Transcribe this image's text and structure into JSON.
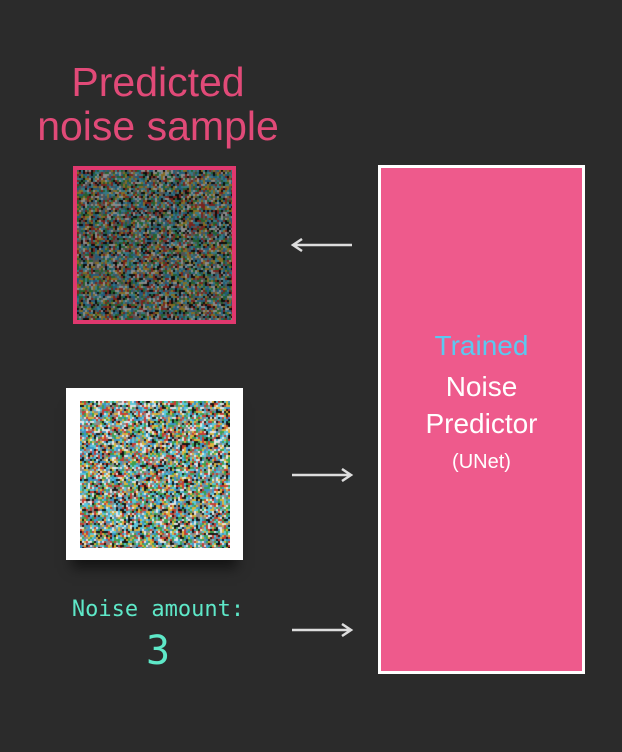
{
  "title": {
    "line1": "Predicted",
    "line2": "noise sample"
  },
  "predictor": {
    "line1": "Trained",
    "line2": "Noise",
    "line3": "Predictor",
    "line4": "(UNet)"
  },
  "noise_amount": {
    "label": "Noise amount:",
    "value": "3"
  },
  "colors": {
    "background": "#2b2b2b",
    "title": "#e14a78",
    "predictor_fill": "#ee5a8c",
    "trained": "#5bc8f0",
    "noise_amount": "#5ee8c8",
    "arrow": "#dddddd"
  }
}
